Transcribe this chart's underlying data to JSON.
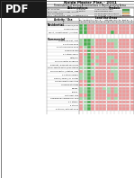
{
  "title": "Noida Master Plan - 2031",
  "subtitle": "Permissibility of Various Activities/Uses in Major Land-Use Areas",
  "abbr_title": "Abbreviations",
  "symbols_title": "Symbols",
  "pdf_bg": "#1e1e1e",
  "page_bg": "#ffffff",
  "green": "#4caf50",
  "light_green": "#a5d6a7",
  "red": "#ef9a9a",
  "dark_red": "#e57373",
  "orange": "#ffcc80",
  "abbr_rows": [
    [
      "Key Permitted",
      "As Marked",
      "Under Permitted Uses",
      "Permissible as"
    ],
    [
      "Basic Shops / Retail Shops / Grocery",
      "As Written",
      "Sub Permissible Uses",
      "Conditional Permissible as"
    ],
    [
      "Civic Convenience",
      "",
      "Not for Residential Zone/Plot",
      "With special conditions of the Zonal"
    ],
    [
      "Minor Infrastructure / repair / servicing",
      "Not Indicated",
      "Not Permitted Including Industries process",
      "Not permissible"
    ]
  ],
  "col_headers": [
    "Resi.",
    "Resi.",
    "Comm",
    "Indus",
    "Recr.",
    "Sp.",
    "IT",
    "Pub/\nPriv",
    "Trans",
    "Sector",
    "Pub.",
    "Green",
    "Agri",
    "Zn"
  ],
  "col_nums": [
    "1",
    "2",
    "3",
    "4",
    "5",
    "6",
    "7",
    "8",
    "9",
    "10",
    "11",
    "12",
    "13",
    "14"
  ],
  "res_label": "Residential",
  "res_rows": [
    {
      "label": "Single Family/PLOT",
      "cells": [
        "G",
        "G",
        "R",
        "R",
        "R",
        "R",
        "R",
        "R",
        "R",
        "R",
        "R",
        "R",
        "R",
        "R"
      ]
    },
    {
      "label": "Group Housing",
      "cells": [
        "G",
        "G",
        "R",
        "R",
        "R",
        "R",
        "R",
        "R",
        "R",
        "R",
        "R",
        "R",
        "R",
        "R"
      ]
    },
    {
      "label": "Transit / Resettlement / shifting",
      "cells": [
        "G",
        "G",
        "R",
        "R",
        "R",
        "R",
        "R",
        "R",
        "G",
        "R",
        "R",
        "R",
        "R",
        "R"
      ]
    }
  ],
  "com_label": "Commercial",
  "com_rows": [
    {
      "label": "Shop Shop Plot / Plot",
      "cells": [
        "LG",
        "G",
        "G",
        "LG",
        "R",
        "R",
        "R",
        "LG",
        "LG",
        "LG",
        "R",
        "R",
        "R",
        "R"
      ]
    },
    {
      "label": "1-2 Storey Shop",
      "cells": [
        "LG",
        "G",
        "G",
        "LG",
        "R",
        "R",
        "R",
        "R",
        "R",
        "LG",
        "R",
        "R",
        "R",
        "R"
      ]
    },
    {
      "label": "2-3 Storey Mixed Shop",
      "cells": [
        "R",
        "LG",
        "G",
        "R",
        "R",
        "R",
        "R",
        "R",
        "R",
        "LG",
        "R",
        "R",
        "R",
        "R"
      ]
    },
    {
      "label": "Shopping mall",
      "cells": [
        "R",
        "R",
        "G",
        "R",
        "R",
        "R",
        "R",
        "R",
        "R",
        "R",
        "R",
        "R",
        "R",
        "R"
      ]
    },
    {
      "label": "4+ Storey Malls",
      "cells": [
        "R",
        "R",
        "G",
        "R",
        "R",
        "R",
        "R",
        "R",
        "R",
        "R",
        "R",
        "R",
        "R",
        "R"
      ]
    },
    {
      "label": "Hotel/Inn",
      "cells": [
        "R",
        "LG",
        "G",
        "R",
        "LG",
        "R",
        "R",
        "LG",
        "LG",
        "R",
        "R",
        "R",
        "R",
        "R"
      ]
    },
    {
      "label": "Service Sector Shopping",
      "cells": [
        "R",
        "LG",
        "G",
        "LG",
        "R",
        "R",
        "R",
        "LG",
        "R",
        "LG",
        "R",
        "R",
        "R",
        "R"
      ]
    },
    {
      "label": "Banquet / Banquet hall areas",
      "cells": [
        "R",
        "LG",
        "G",
        "R",
        "LG",
        "R",
        "R",
        "R",
        "R",
        "R",
        "R",
        "R",
        "R",
        "R"
      ]
    },
    {
      "label": "Small Service Petrol/Gas Station",
      "cells": [
        "LG",
        "LG",
        "G",
        "LG",
        "R",
        "R",
        "R",
        "R",
        "LG",
        "LG",
        "R",
        "R",
        "R",
        "R"
      ]
    },
    {
      "label": "Service Center / Station / Gas",
      "cells": [
        "R",
        "LG",
        "G",
        "LG",
        "R",
        "R",
        "R",
        "R",
        "LG",
        "LG",
        "R",
        "R",
        "R",
        "R"
      ]
    },
    {
      "label": "1-2 storey Mixed",
      "cells": [
        "LG",
        "LG",
        "G",
        "LG",
        "R",
        "R",
        "R",
        "R",
        "R",
        "LG",
        "R",
        "R",
        "R",
        "R"
      ]
    },
    {
      "label": "Sauna / Salon / Sr. Center",
      "cells": [
        "LG",
        "LG",
        "G",
        "R",
        "R",
        "R",
        "R",
        "R",
        "R",
        "LG",
        "R",
        "R",
        "R",
        "R"
      ]
    },
    {
      "label": "Car Manufacturing Store",
      "cells": [
        "R",
        "R",
        "G",
        "LG",
        "R",
        "R",
        "R",
        "R",
        "R",
        "R",
        "R",
        "R",
        "R",
        "R"
      ]
    },
    {
      "label": "Large Dept Stores",
      "cells": [
        "R",
        "R",
        "G",
        "R",
        "R",
        "R",
        "R",
        "R",
        "R",
        "R",
        "R",
        "R",
        "R",
        "R"
      ]
    },
    {
      "label": "Offices",
      "cells": [
        "LG",
        "LG",
        "G",
        "LG",
        "R",
        "R",
        "LG",
        "LG",
        "R",
        "LG",
        "R",
        "R",
        "R",
        "R"
      ]
    },
    {
      "label": "Clinics",
      "cells": [
        "LG",
        "LG",
        "G",
        "LG",
        "R",
        "R",
        "R",
        "LG",
        "R",
        "LG",
        "R",
        "R",
        "R",
        "R"
      ]
    },
    {
      "label": "Go to Mkt Ctrs",
      "cells": [
        "R",
        "R",
        "G",
        "LG",
        "R",
        "R",
        "R",
        "R",
        "R",
        "R",
        "R",
        "R",
        "R",
        "R"
      ]
    },
    {
      "label": "Commercial Complex for Sale",
      "cells": [
        "LG",
        "LG",
        "G",
        "LG",
        "R",
        "R",
        "R",
        "LG",
        "R",
        "LG",
        "R",
        "R",
        "R",
        "R"
      ]
    },
    {
      "label": "4+ Storey",
      "cells": [
        "R",
        "LG",
        "G",
        "R",
        "R",
        "R",
        "R",
        "R",
        "R",
        "R",
        "R",
        "R",
        "R",
        "R"
      ]
    },
    {
      "label": "5 Storey",
      "cells": [
        "R",
        "LG",
        "G",
        "R",
        "R",
        "R",
        "R",
        "R",
        "R",
        "R",
        "R",
        "R",
        "R",
        "R"
      ]
    },
    {
      "label": "5 Storey / without Shop",
      "cells": [
        "R",
        "LG",
        "G",
        "R",
        "R",
        "R",
        "R",
        "R",
        "R",
        "R",
        "R",
        "R",
        "R",
        "R"
      ]
    }
  ]
}
